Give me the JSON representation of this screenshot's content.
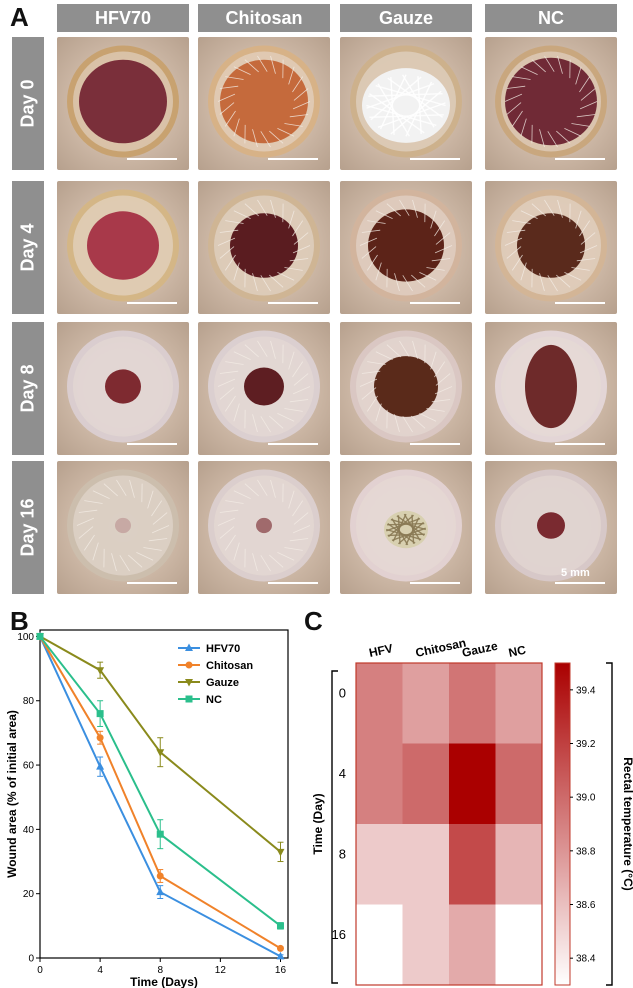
{
  "panels": {
    "a": "A",
    "b": "B",
    "c": "C"
  },
  "photo_grid": {
    "columns": [
      "HFV70",
      "Chitosan",
      "Gauze",
      "NC"
    ],
    "rows": [
      "Day 0",
      "Day 4",
      "Day 8",
      "Day 16"
    ],
    "scale_label": "5 mm"
  },
  "chart_data": [
    {
      "type": "line",
      "xlabel": "Time (Days)",
      "ylabel": "Wound area (% of initial area)",
      "x": [
        0,
        4,
        8,
        16
      ],
      "xticks": [
        0,
        4,
        8,
        12,
        16
      ],
      "yticks": [
        0,
        20,
        40,
        60,
        80,
        100
      ],
      "xlim": [
        0,
        16.5
      ],
      "ylim": [
        0,
        102
      ],
      "legend_position": "top-right",
      "series": [
        {
          "name": "HFV70",
          "values": [
            100,
            59.5,
            20.5,
            0.5
          ],
          "errors": [
            0,
            3,
            2,
            0.5
          ],
          "color": "#3b8fe0",
          "marker": "triangle-up"
        },
        {
          "name": "Chitosan",
          "values": [
            100,
            68.5,
            25.5,
            3
          ],
          "errors": [
            0,
            2,
            2,
            0.5
          ],
          "color": "#f0822a",
          "marker": "circle"
        },
        {
          "name": "Gauze",
          "values": [
            100,
            89.5,
            64,
            33
          ],
          "errors": [
            0,
            2.5,
            4.5,
            3
          ],
          "color": "#8a8a1c",
          "marker": "triangle-down"
        },
        {
          "name": "NC",
          "values": [
            100,
            76,
            38.5,
            10
          ],
          "errors": [
            0,
            4,
            4.5,
            1
          ],
          "color": "#2bbf8c",
          "marker": "square"
        }
      ]
    },
    {
      "type": "heatmap",
      "columns": [
        "HFV",
        "Chitosan",
        "Gauze",
        "NC"
      ],
      "rows": [
        "0",
        "4",
        "8",
        "16"
      ],
      "ylabel": "Time (Day)",
      "colorbar_label": "Rectal temperature (°C)",
      "colorbar_ticks": [
        38.4,
        38.6,
        38.8,
        39.0,
        39.2,
        39.4
      ],
      "colorbar_ticklabels": [
        "38.4",
        "38.6",
        "38.8",
        "39.0",
        "39.2",
        "39.4"
      ],
      "range": [
        38.3,
        39.5
      ],
      "color_low": "#ffffff",
      "color_high": "#aa0000",
      "values": [
        [
          38.9,
          38.75,
          38.95,
          38.75
        ],
        [
          38.9,
          39.0,
          39.5,
          39.0
        ],
        [
          38.55,
          38.55,
          39.15,
          38.65
        ],
        [
          38.3,
          38.55,
          38.7,
          38.3
        ]
      ]
    }
  ]
}
